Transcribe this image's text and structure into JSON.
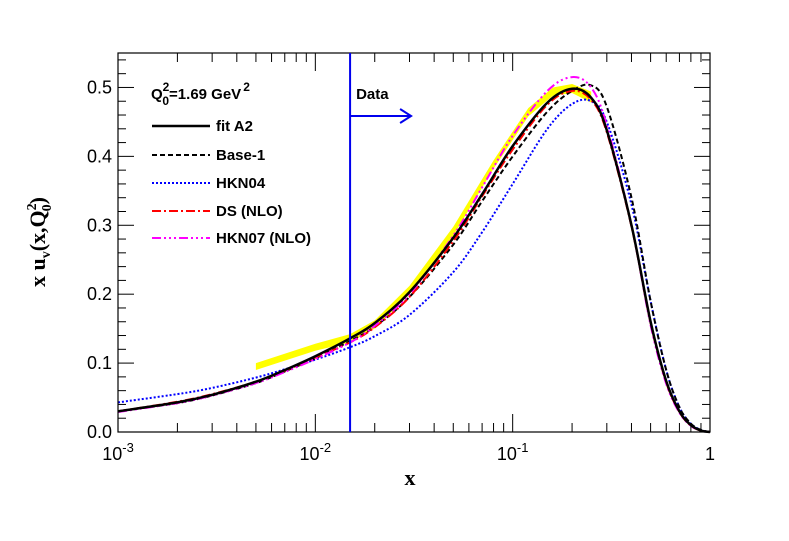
{
  "chart_data": {
    "type": "line",
    "xlabel": "x",
    "ylabel_parts": {
      "prefix": "x u",
      "sub_v": "v",
      "open": "(x,Q",
      "sup": "2",
      "sub": "0",
      "close": ")"
    },
    "xscale": "log",
    "xlim": [
      0.001,
      1
    ],
    "ylim": [
      0,
      0.55
    ],
    "x_ticks": [
      {
        "value": 0.001,
        "base": "10",
        "exp": "-3"
      },
      {
        "value": 0.01,
        "base": "10",
        "exp": "-2"
      },
      {
        "value": 0.1,
        "base": "10",
        "exp": "-1"
      },
      {
        "value": 1,
        "text": "1"
      }
    ],
    "y_ticks": [
      "0.0",
      "0.1",
      "0.2",
      "0.3",
      "0.4",
      "0.5"
    ],
    "y_tick_values": [
      0,
      0.1,
      0.2,
      0.3,
      0.4,
      0.5
    ],
    "scale_label": {
      "q": "Q",
      "sup": "2",
      "sub": "0",
      "rest": "=1.69 GeV",
      "unit_sup": "2"
    },
    "data_marker": {
      "x": 0.015,
      "label": "Data"
    },
    "legend_position": "top-left",
    "uncertainty_band": {
      "color": "#ffff00",
      "x": [
        0.005,
        0.01,
        0.015,
        0.02,
        0.03,
        0.05,
        0.08,
        0.12,
        0.16,
        0.2,
        0.25
      ],
      "lower": [
        0.09,
        0.118,
        0.13,
        0.15,
        0.2,
        0.285,
        0.382,
        0.458,
        0.488,
        0.492,
        0.478
      ],
      "upper": [
        0.1,
        0.128,
        0.142,
        0.162,
        0.212,
        0.298,
        0.394,
        0.47,
        0.5,
        0.505,
        0.494
      ]
    },
    "series": [
      {
        "name": "fit A2",
        "color": "#000000",
        "dash": "",
        "width": 2.5,
        "x": [
          0.001,
          0.002,
          0.003,
          0.005,
          0.007,
          0.01,
          0.015,
          0.02,
          0.03,
          0.05,
          0.07,
          0.1,
          0.15,
          0.2,
          0.25,
          0.3,
          0.4,
          0.5,
          0.6,
          0.7,
          0.8,
          0.9,
          1
        ],
        "y": [
          0.03,
          0.043,
          0.054,
          0.073,
          0.09,
          0.11,
          0.136,
          0.158,
          0.203,
          0.282,
          0.345,
          0.415,
          0.478,
          0.498,
          0.485,
          0.438,
          0.3,
          0.16,
          0.074,
          0.03,
          0.01,
          0.002,
          0
        ]
      },
      {
        "name": "Base-1",
        "color": "#000000",
        "dash": "5,3",
        "width": 2,
        "x": [
          0.001,
          0.002,
          0.003,
          0.005,
          0.007,
          0.01,
          0.015,
          0.02,
          0.03,
          0.05,
          0.07,
          0.1,
          0.15,
          0.2,
          0.25,
          0.3,
          0.4,
          0.5,
          0.6,
          0.7,
          0.8,
          0.9,
          1
        ],
        "y": [
          0.03,
          0.042,
          0.053,
          0.071,
          0.088,
          0.107,
          0.132,
          0.153,
          0.196,
          0.272,
          0.335,
          0.4,
          0.465,
          0.495,
          0.503,
          0.472,
          0.34,
          0.19,
          0.09,
          0.036,
          0.012,
          0.003,
          0
        ]
      },
      {
        "name": "HKN04",
        "color": "#0000ff",
        "dash": "2,2",
        "width": 2,
        "x": [
          0.001,
          0.002,
          0.003,
          0.005,
          0.007,
          0.01,
          0.015,
          0.02,
          0.03,
          0.05,
          0.07,
          0.1,
          0.15,
          0.2,
          0.25,
          0.3,
          0.4,
          0.5,
          0.6,
          0.7,
          0.8,
          0.9,
          1
        ],
        "y": [
          0.043,
          0.055,
          0.064,
          0.079,
          0.091,
          0.105,
          0.123,
          0.139,
          0.17,
          0.232,
          0.29,
          0.36,
          0.44,
          0.476,
          0.48,
          0.45,
          0.33,
          0.19,
          0.09,
          0.036,
          0.012,
          0.003,
          0
        ]
      },
      {
        "name": "DS (NLO)",
        "color": "#ff0000",
        "dash": "9,3,2,3",
        "width": 2,
        "x": [
          0.001,
          0.002,
          0.003,
          0.005,
          0.007,
          0.01,
          0.015,
          0.02,
          0.03,
          0.05,
          0.07,
          0.1,
          0.15,
          0.2,
          0.25,
          0.3,
          0.4,
          0.5,
          0.6,
          0.7,
          0.8,
          0.9,
          1
        ],
        "y": [
          0.03,
          0.044,
          0.055,
          0.073,
          0.089,
          0.108,
          0.13,
          0.152,
          0.196,
          0.277,
          0.342,
          0.41,
          0.475,
          0.495,
          0.482,
          0.435,
          0.298,
          0.158,
          0.072,
          0.029,
          0.009,
          0.002,
          0
        ]
      },
      {
        "name": "HKN07 (NLO)",
        "color": "#ff00ff",
        "dash": "9,3,2,3,2,3,2,3",
        "width": 2,
        "x": [
          0.001,
          0.002,
          0.003,
          0.005,
          0.007,
          0.01,
          0.015,
          0.02,
          0.03,
          0.05,
          0.07,
          0.1,
          0.15,
          0.2,
          0.25,
          0.3,
          0.4,
          0.5,
          0.6,
          0.7,
          0.8,
          0.9,
          1
        ],
        "y": [
          0.029,
          0.042,
          0.053,
          0.071,
          0.087,
          0.106,
          0.13,
          0.154,
          0.2,
          0.285,
          0.355,
          0.43,
          0.495,
          0.515,
          0.5,
          0.445,
          0.3,
          0.155,
          0.07,
          0.028,
          0.009,
          0.002,
          0
        ]
      }
    ]
  }
}
